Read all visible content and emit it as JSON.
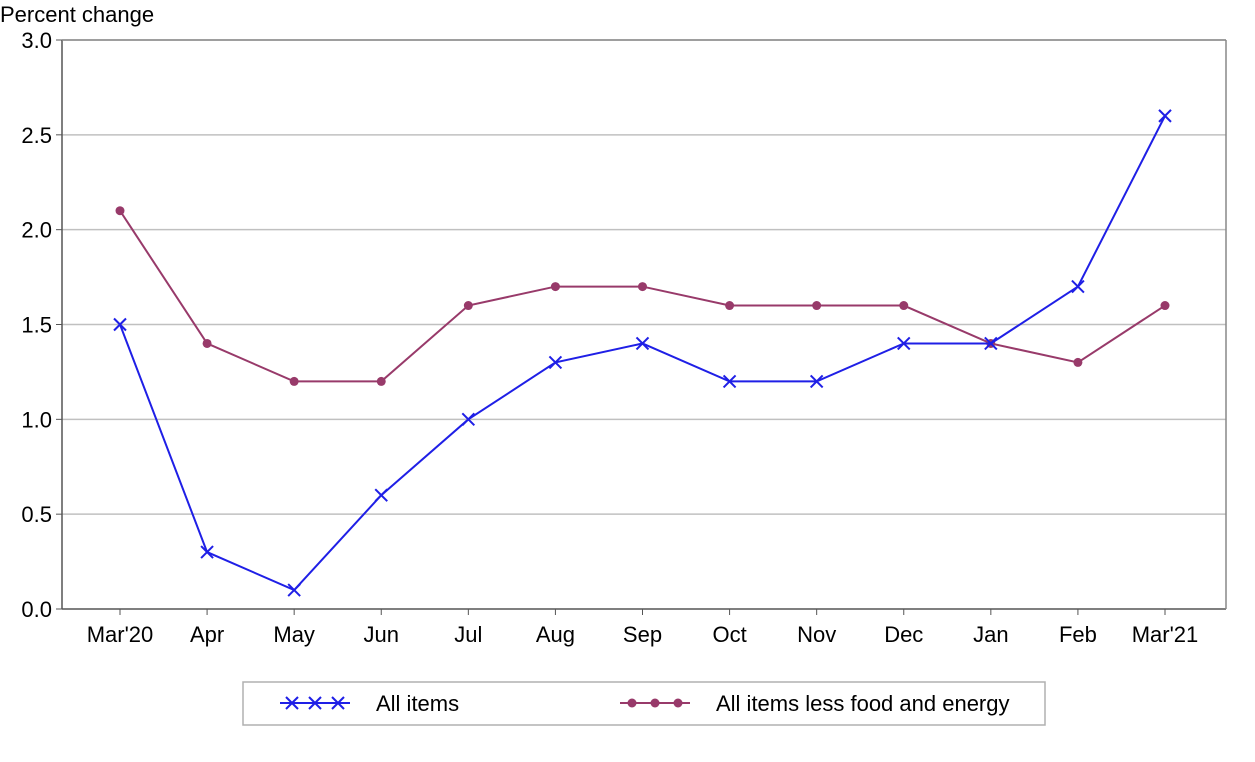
{
  "chart_data": {
    "type": "line",
    "ylabel": "Percent change",
    "xlabel": "",
    "categories": [
      "Mar'20",
      "Apr",
      "May",
      "Jun",
      "Jul",
      "Aug",
      "Sep",
      "Oct",
      "Nov",
      "Dec",
      "Jan",
      "Feb",
      "Mar'21"
    ],
    "ylim": [
      0.0,
      3.0
    ],
    "yticks": [
      "0.0",
      "0.5",
      "1.0",
      "1.5",
      "2.0",
      "2.5",
      "3.0"
    ],
    "grid": "horizontal",
    "legend_position": "bottom",
    "series": [
      {
        "name": "All items",
        "color": "#1f1fe6",
        "marker": "x",
        "values": [
          1.5,
          0.3,
          0.1,
          0.6,
          1.0,
          1.3,
          1.4,
          1.2,
          1.2,
          1.4,
          1.4,
          1.7,
          2.6
        ]
      },
      {
        "name": "All items less food and energy",
        "color": "#983a6a",
        "marker": "circle",
        "values": [
          2.1,
          1.4,
          1.2,
          1.2,
          1.6,
          1.7,
          1.7,
          1.6,
          1.6,
          1.6,
          1.4,
          1.3,
          1.6
        ]
      }
    ]
  }
}
